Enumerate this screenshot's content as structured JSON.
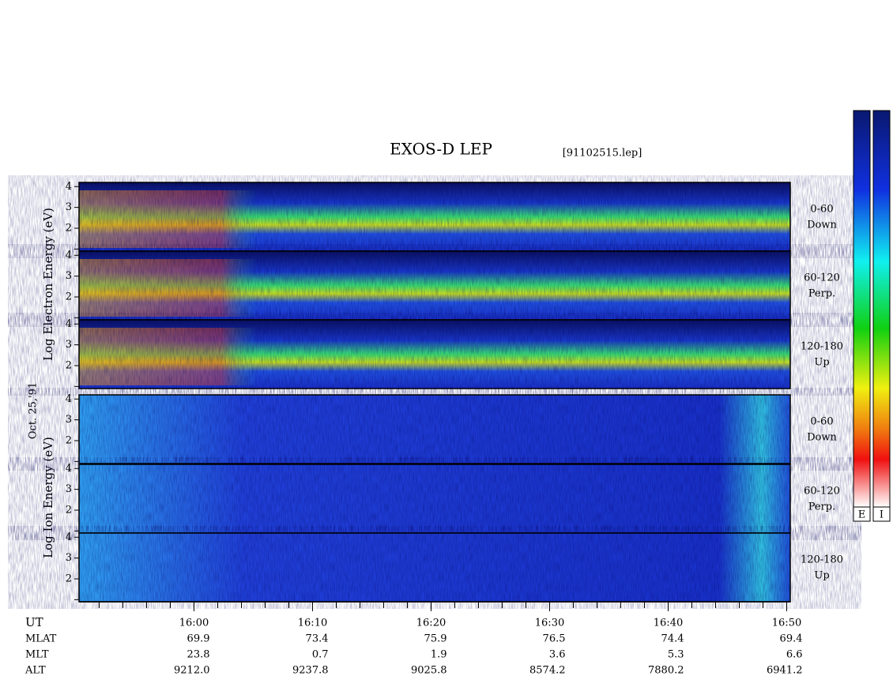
{
  "header": {
    "title": "EXOS-D LEP",
    "file": "[91102515.lep]"
  },
  "date": "Oct. 25,'91",
  "energy_axis": {
    "ylim": [
      0.9,
      4.2
    ],
    "yticks": [
      2,
      3,
      4
    ],
    "minor_yticks": [
      1
    ]
  },
  "electron": {
    "axis_label": "Log Electron Energy (eV)",
    "panels": [
      {
        "range": "0-60",
        "direction": "Down"
      },
      {
        "range": "60-120",
        "direction": "Perp."
      },
      {
        "range": "120-180",
        "direction": "Up"
      }
    ]
  },
  "ion": {
    "axis_label": "Log Ion Energy (eV)",
    "panels": [
      {
        "range": "0-60",
        "direction": "Down"
      },
      {
        "range": "60-120",
        "direction": "Perp."
      },
      {
        "range": "120-180",
        "direction": "Up"
      }
    ]
  },
  "time_axis": {
    "xlim": [
      950.3,
      1010.3
    ],
    "xticks": [
      {
        "value": 960,
        "label": "16:00"
      },
      {
        "value": 970,
        "label": "16:10"
      },
      {
        "value": 980,
        "label": "16:20"
      },
      {
        "value": 990,
        "label": "16:30"
      },
      {
        "value": 1000,
        "label": "16:40"
      },
      {
        "value": 1010,
        "label": "16:50"
      }
    ],
    "minor_xticks": [
      952,
      954,
      956,
      958,
      962,
      964,
      966,
      968,
      972,
      974,
      976,
      978,
      982,
      984,
      986,
      988,
      992,
      994,
      996,
      998,
      1002,
      1004,
      1006,
      1008
    ]
  },
  "footer": {
    "ut_label": "UT",
    "rows": [
      {
        "name": "MLAT",
        "values": [
          "69.9",
          "73.4",
          "75.9",
          "76.5",
          "74.4",
          "69.4"
        ]
      },
      {
        "name": "MLT",
        "values": [
          "23.8",
          "0.7",
          "1.9",
          "3.6",
          "5.3",
          "6.6"
        ]
      },
      {
        "name": "ALT",
        "values": [
          "9212.0",
          "9237.8",
          "9025.8",
          "8574.2",
          "7880.2",
          "6941.2"
        ]
      }
    ]
  },
  "colorbars": [
    "E",
    "I"
  ]
}
